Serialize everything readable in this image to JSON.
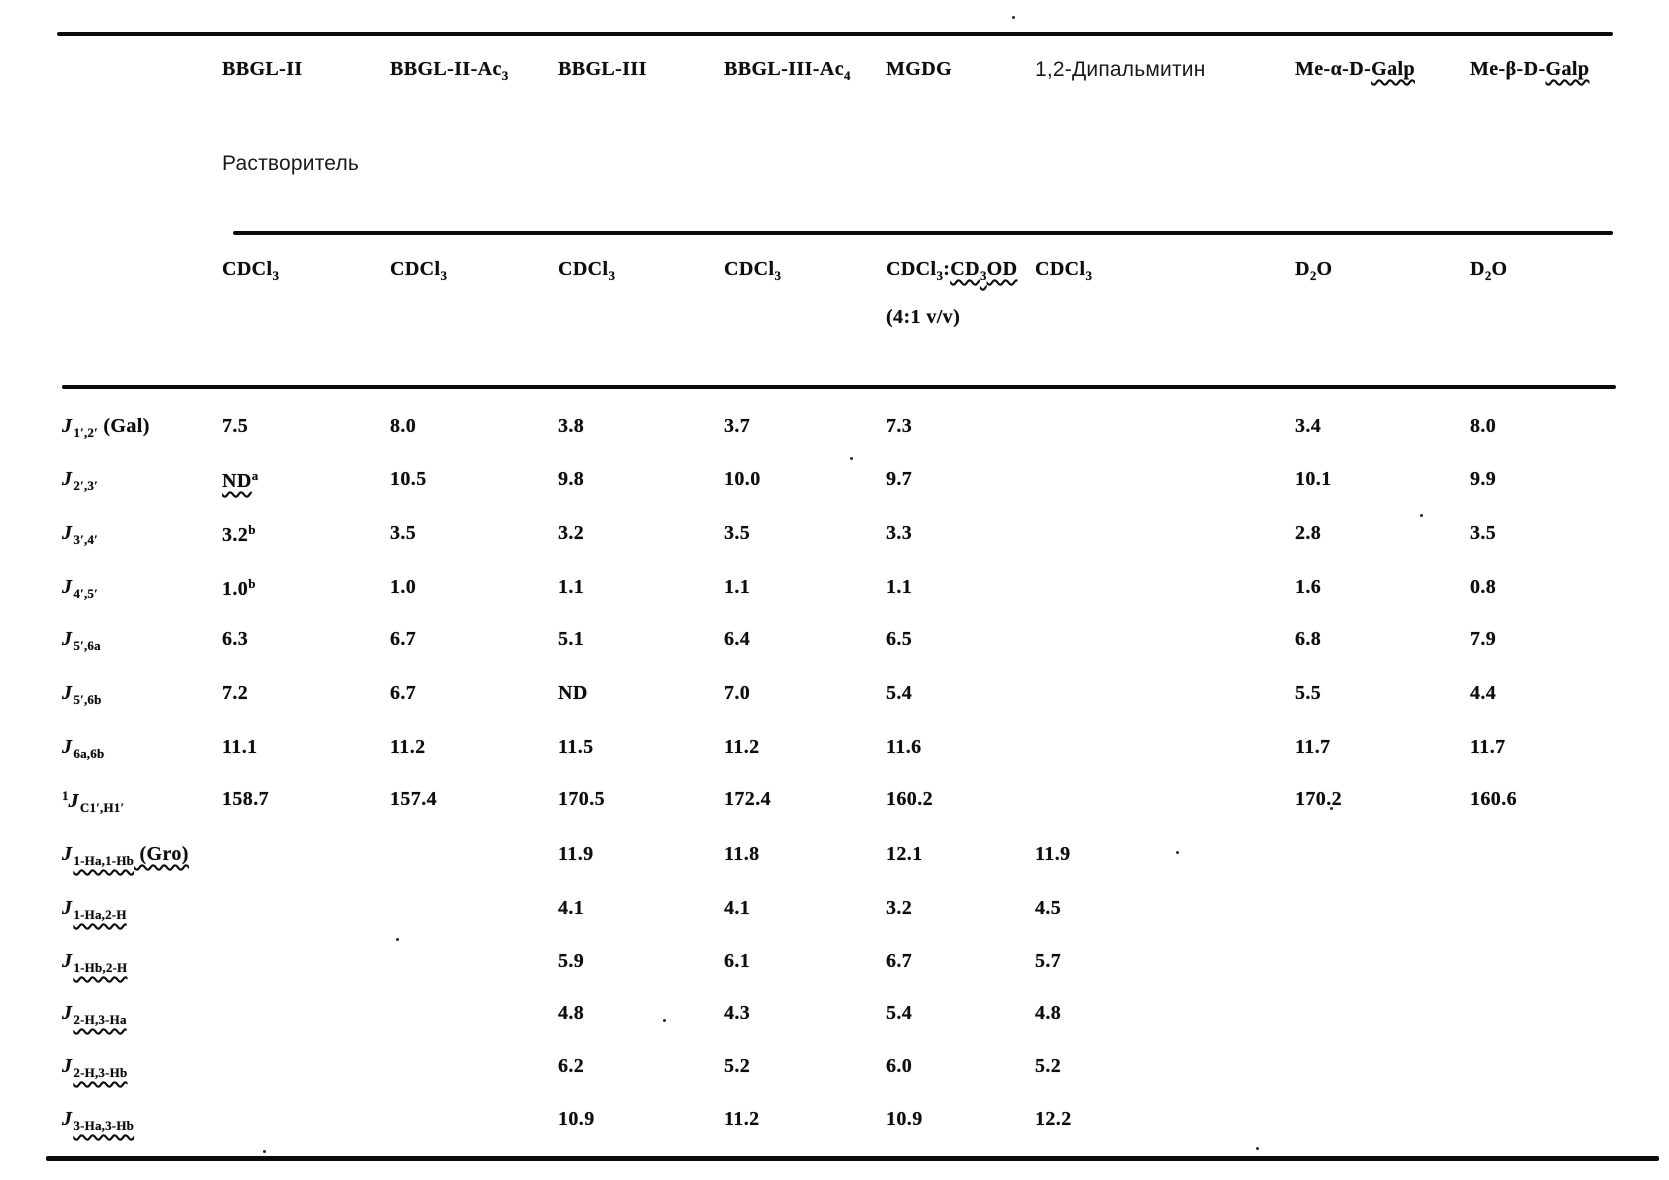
{
  "page": {
    "background": "#ffffff",
    "ink": "#0e0e0e"
  },
  "table": {
    "solvent_label": "Растворитель",
    "columns": [
      {
        "header": [
          {
            "t": "BBGL-II"
          }
        ],
        "solvent": [
          [
            {
              "t": "CDCl"
            },
            {
              "t": "3",
              "sub": true
            }
          ]
        ]
      },
      {
        "header": [
          {
            "t": "BBGL-II-Ac"
          },
          {
            "t": "3",
            "sub": true
          }
        ],
        "solvent": [
          [
            {
              "t": "CDCl"
            },
            {
              "t": "3",
              "sub": true
            }
          ]
        ]
      },
      {
        "header": [
          {
            "t": "BBGL-III"
          }
        ],
        "solvent": [
          [
            {
              "t": "CDCl"
            },
            {
              "t": "3",
              "sub": true
            }
          ]
        ]
      },
      {
        "header": [
          {
            "t": "BBGL-III-Ac"
          },
          {
            "t": "4",
            "sub": true
          }
        ],
        "solvent": [
          [
            {
              "t": "CDCl"
            },
            {
              "t": "3",
              "sub": true
            }
          ]
        ]
      },
      {
        "header": [
          {
            "t": "MGDG"
          }
        ],
        "solvent": [
          [
            {
              "t": "CDCl"
            },
            {
              "t": "3",
              "sub": true
            },
            {
              "t": ":"
            },
            {
              "t": "CD",
              "wavy": true
            },
            {
              "t": "3",
              "sub": true,
              "wavy": true
            },
            {
              "t": "OD",
              "wavy": true
            }
          ],
          [
            {
              "t": "(4:1 v/v)"
            }
          ]
        ]
      },
      {
        "header": [
          {
            "t": "1,2-Дипальмитин"
          }
        ],
        "font": "sans",
        "solvent": [
          [
            {
              "t": "CDCl"
            },
            {
              "t": "3",
              "sub": true
            }
          ]
        ]
      },
      {
        "header": [
          {
            "t": "Me-α-D-"
          },
          {
            "t": "Galp",
            "wavy": true
          }
        ],
        "solvent": [
          [
            {
              "t": "D"
            },
            {
              "t": "2",
              "sub": true
            },
            {
              "t": "O"
            }
          ]
        ]
      },
      {
        "header": [
          {
            "t": "Me-β-D-"
          },
          {
            "t": "Galp",
            "wavy": true
          }
        ],
        "solvent": [
          [
            {
              "t": "D"
            },
            {
              "t": "2",
              "sub": true
            },
            {
              "t": "O"
            }
          ]
        ]
      }
    ],
    "rows": [
      {
        "label": [
          {
            "t": "J",
            "it": true
          },
          {
            "t": "1′,2′",
            "sub": true
          },
          {
            "t": " (Gal)"
          }
        ],
        "values": [
          "7.5",
          "8.0",
          "3.8",
          "3.7",
          "7.3",
          "",
          "3.4",
          "8.0"
        ]
      },
      {
        "label": [
          {
            "t": "J",
            "it": true
          },
          {
            "t": "2′,3′",
            "sub": true
          }
        ],
        "values": [
          {
            "t": "ND",
            "wavy": true,
            "sup": "a"
          },
          "10.5",
          "9.8",
          "10.0",
          "9.7",
          "",
          "10.1",
          "9.9"
        ]
      },
      {
        "label": [
          {
            "t": "J",
            "it": true
          },
          {
            "t": "3′,4′",
            "sub": true
          }
        ],
        "values": [
          {
            "t": "3.2",
            "sup": "b"
          },
          "3.5",
          "3.2",
          "3.5",
          "3.3",
          "",
          "2.8",
          "3.5"
        ]
      },
      {
        "label": [
          {
            "t": "J",
            "it": true
          },
          {
            "t": "4′,5′",
            "sub": true
          }
        ],
        "values": [
          {
            "t": "1.0",
            "sup": "b"
          },
          "1.0",
          "1.1",
          "1.1",
          "1.1",
          "",
          "1.6",
          "0.8"
        ]
      },
      {
        "label": [
          {
            "t": "J",
            "it": true
          },
          {
            "t": "5′,6a",
            "sub": true
          }
        ],
        "values": [
          "6.3",
          "6.7",
          "5.1",
          "6.4",
          "6.5",
          "",
          "6.8",
          "7.9"
        ]
      },
      {
        "label": [
          {
            "t": "J",
            "it": true
          },
          {
            "t": "5′,6b",
            "sub": true
          }
        ],
        "values": [
          "7.2",
          "6.7",
          "ND",
          "7.0",
          "5.4",
          "",
          "5.5",
          "4.4"
        ]
      },
      {
        "label": [
          {
            "t": "J",
            "it": true
          },
          {
            "t": "6a,6b",
            "sub": true
          }
        ],
        "values": [
          "11.1",
          "11.2",
          "11.5",
          "11.2",
          "11.6",
          "",
          "11.7",
          "11.7"
        ]
      },
      {
        "label": [
          {
            "t": "1",
            "sup": true
          },
          {
            "t": "J",
            "it": true
          },
          {
            "t": "C1′,H1′",
            "sub": true
          }
        ],
        "values": [
          "158.7",
          "157.4",
          "170.5",
          "172.4",
          "160.2",
          "",
          "170.2",
          "160.6"
        ]
      },
      {
        "label": [
          {
            "t": "J",
            "it": true
          },
          {
            "t": "1-Ha,1-Hb",
            "sub": true,
            "wavy": true
          },
          {
            "t": " (Gro)",
            "wavy": true
          }
        ],
        "values": [
          "",
          "",
          "11.9",
          "11.8",
          "12.1",
          "11.9",
          "",
          ""
        ]
      },
      {
        "label": [
          {
            "t": "J",
            "it": true
          },
          {
            "t": "1-Ha,2-H",
            "sub": true,
            "wavy": true
          }
        ],
        "values": [
          "",
          "",
          "4.1",
          "4.1",
          "3.2",
          "4.5",
          "",
          ""
        ]
      },
      {
        "label": [
          {
            "t": "J",
            "it": true
          },
          {
            "t": "1-Hb,2-H",
            "sub": true,
            "wavy": true
          }
        ],
        "values": [
          "",
          "",
          "5.9",
          "6.1",
          "6.7",
          "5.7",
          "",
          ""
        ]
      },
      {
        "label": [
          {
            "t": "J",
            "it": true
          },
          {
            "t": "2-H,3-Ha",
            "sub": true,
            "wavy": true
          }
        ],
        "values": [
          "",
          "",
          "4.8",
          "4.3",
          "5.4",
          "4.8",
          "",
          ""
        ]
      },
      {
        "label": [
          {
            "t": "J",
            "it": true
          },
          {
            "t": "2-H,3-Hb",
            "sub": true,
            "wavy": true
          }
        ],
        "values": [
          "",
          "",
          "6.2",
          "5.2",
          "6.0",
          "5.2",
          "",
          ""
        ]
      },
      {
        "label": [
          {
            "t": "J",
            "it": true
          },
          {
            "t": "3-Ha,3-Hb",
            "sub": true,
            "wavy": true
          }
        ],
        "values": [
          "",
          "",
          "10.9",
          "11.2",
          "10.9",
          "12.2",
          "",
          ""
        ]
      }
    ]
  }
}
